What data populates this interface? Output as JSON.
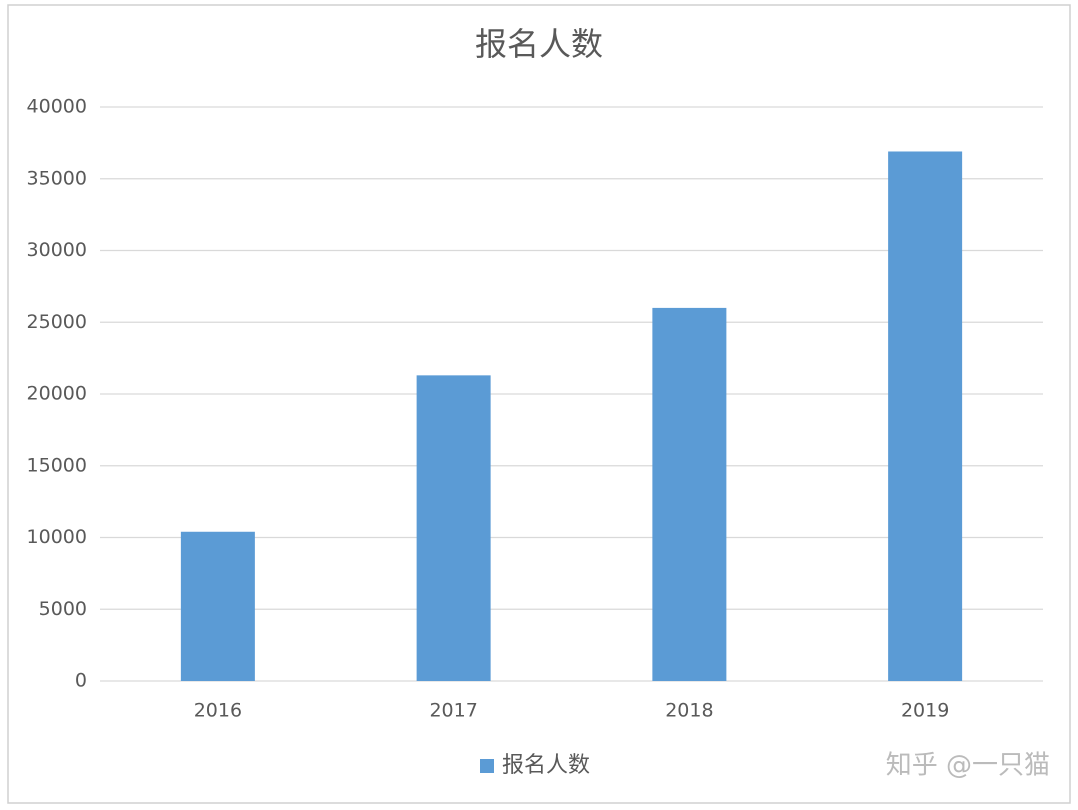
{
  "chart_data": {
    "type": "bar",
    "title": "报名人数",
    "categories": [
      "2016",
      "2017",
      "2018",
      "2019"
    ],
    "series": [
      {
        "name": "报名人数",
        "color": "#5b9bd5",
        "values": [
          10400,
          21300,
          26000,
          36900
        ]
      }
    ],
    "ylim": [
      0,
      40000
    ],
    "yticks": [
      0,
      5000,
      10000,
      15000,
      20000,
      25000,
      30000,
      35000,
      40000
    ],
    "grid": true,
    "legend": "bottom"
  },
  "watermark": "知乎 @一只猫"
}
